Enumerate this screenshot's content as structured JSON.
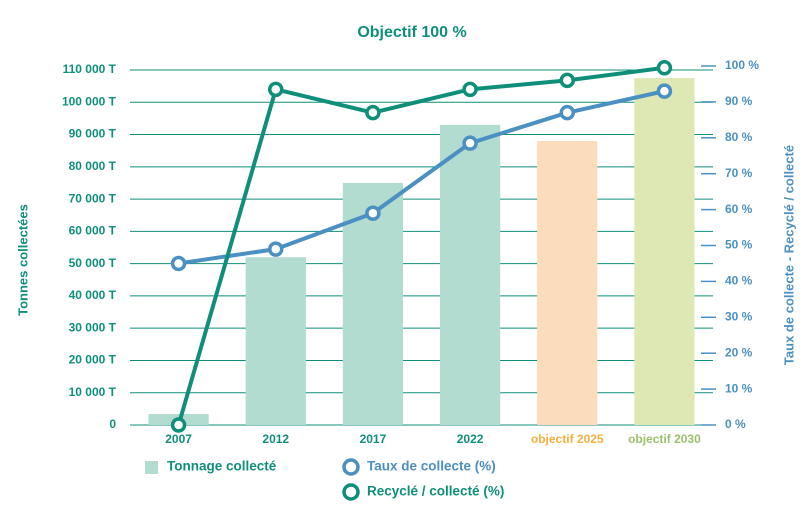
{
  "chart_data": {
    "type": "bar",
    "title": "Objectif 100 %",
    "y_label": "Tonnes collectées",
    "y2_label": "Taux de collecte - Recyclé / collecté",
    "categories": [
      "2007",
      "2012",
      "2017",
      "2022",
      "objectif 2025",
      "objectif 2030"
    ],
    "category_colors": [
      "#0f8f7a",
      "#0f8f7a",
      "#0f8f7a",
      "#0f8f7a",
      "#f5b041",
      "#9cc06b"
    ],
    "series": [
      {
        "name": "Tonnage collecté",
        "type": "bar",
        "color": "#b2dcd0",
        "colors": [
          "#b2dcd0",
          "#b2dcd0",
          "#b2dcd0",
          "#b2dcd0",
          "#fbdcbd",
          "#dde8b5"
        ],
        "values": [
          3400,
          52000,
          75000,
          93000,
          88000,
          107500
        ]
      },
      {
        "name": "Taux de collecte (%)",
        "type": "line",
        "axis": "y2",
        "color": "#4a90c2",
        "values": [
          45,
          49,
          59,
          78.5,
          87,
          93
        ]
      },
      {
        "name": "Recyclé / collecté  (%)",
        "type": "line",
        "axis": "y2",
        "color": "#0f8f7a",
        "values": [
          0,
          93.5,
          87,
          93.5,
          96,
          99.5
        ]
      }
    ],
    "ylim": [
      0,
      110000
    ],
    "yticks": [
      {
        "value": 0,
        "label": "0"
      },
      {
        "value": 10000,
        "label": "10 000 T"
      },
      {
        "value": 20000,
        "label": "20 000 T"
      },
      {
        "value": 30000,
        "label": "30 000 T"
      },
      {
        "value": 40000,
        "label": "40 000 T"
      },
      {
        "value": 50000,
        "label": "50 000 T"
      },
      {
        "value": 60000,
        "label": "60 000 T"
      },
      {
        "value": 70000,
        "label": "70 000 T"
      },
      {
        "value": 80000,
        "label": "80 000 T"
      },
      {
        "value": 90000,
        "label": "90 000 T"
      },
      {
        "value": 100000,
        "label": "100 000 T"
      },
      {
        "value": 110000,
        "label": "110 000 T"
      }
    ],
    "y2lim": [
      0,
      100
    ],
    "y2ticks": [
      {
        "value": 0,
        "label": "0 %"
      },
      {
        "value": 10,
        "label": "10 %"
      },
      {
        "value": 20,
        "label": "20 %"
      },
      {
        "value": 30,
        "label": "30 %"
      },
      {
        "value": 40,
        "label": "40 %"
      },
      {
        "value": 50,
        "label": "50 %"
      },
      {
        "value": 60,
        "label": "60 %"
      },
      {
        "value": 70,
        "label": "70 %"
      },
      {
        "value": 80,
        "label": "80 %"
      },
      {
        "value": 90,
        "label": "90 %"
      },
      {
        "value": 100,
        "label": "100 %"
      }
    ],
    "grid": true
  }
}
